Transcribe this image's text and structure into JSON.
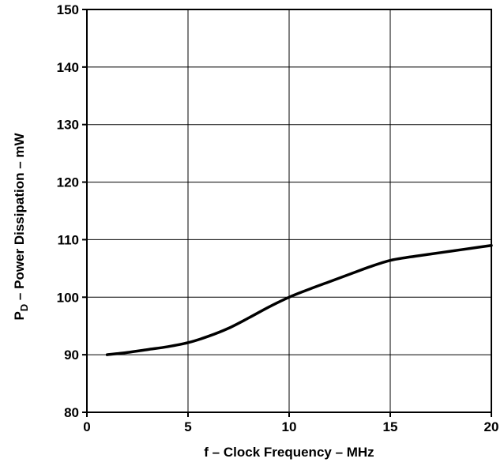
{
  "chart_data": {
    "type": "line",
    "xlabel": "f – Clock Frequency – MHz",
    "ylabel": {
      "prefix": "P",
      "subscript": "D",
      "suffix": " – Power Dissipation – mW"
    },
    "xlim": [
      0,
      20
    ],
    "ylim": [
      80,
      150
    ],
    "xticks": [
      0,
      5,
      10,
      15,
      20
    ],
    "yticks": [
      80,
      90,
      100,
      110,
      120,
      130,
      140,
      150
    ],
    "grid": true,
    "legend": "none",
    "line_color": "#000000",
    "series": [
      {
        "x": [
          1,
          2,
          3,
          4,
          5,
          6,
          7,
          8,
          9,
          10,
          11,
          12,
          13,
          14,
          15,
          16,
          17,
          18,
          19,
          20
        ],
        "y": [
          90.0,
          90.4,
          90.9,
          91.4,
          92.1,
          93.2,
          94.6,
          96.4,
          98.3,
          100.0,
          101.4,
          102.7,
          104.0,
          105.3,
          106.4,
          107.0,
          107.5,
          108.0,
          108.5,
          109.0
        ]
      }
    ]
  }
}
